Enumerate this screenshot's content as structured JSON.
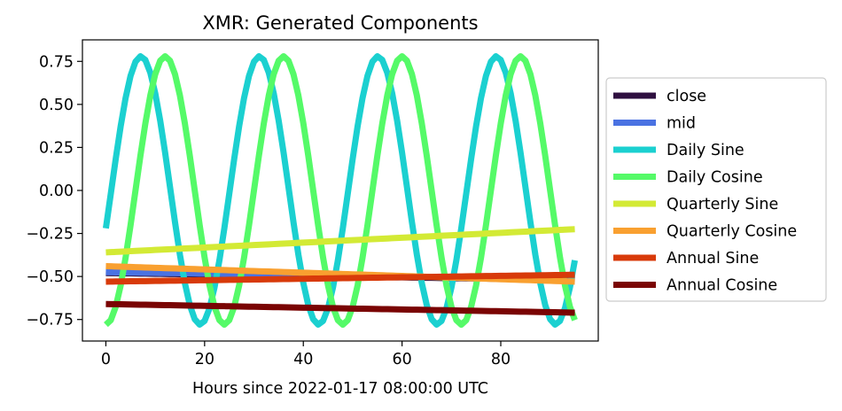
{
  "chart_data": {
    "type": "line",
    "title": "XMR: Generated Components",
    "xlabel": "Hours since 2022-01-17 08:00:00 UTC",
    "ylabel": "",
    "xlim": [
      -4.75,
      99.75
    ],
    "ylim": [
      -0.875,
      0.875
    ],
    "xticks": [
      "0",
      "20",
      "40",
      "60",
      "80"
    ],
    "yticks": [
      "0.75",
      "0.50",
      "0.25",
      "0.00",
      "−0.25",
      "−0.50",
      "−0.75"
    ],
    "grid": false,
    "legend_position": "outside-right",
    "x_range": [
      0,
      95
    ],
    "series": [
      {
        "name": "close",
        "color": "#2f1040",
        "kind": "linear",
        "start": -0.48,
        "end": -0.52
      },
      {
        "name": "mid",
        "color": "#4a72e2",
        "kind": "linear",
        "start": -0.475,
        "end": -0.515
      },
      {
        "name": "Daily Sine",
        "color": "#1bd0d0",
        "kind": "sine",
        "amplitude": 0.78,
        "period_hours": 24,
        "phase_hours": 0,
        "y_at_0": -0.22,
        "y_at_95": -0.38
      },
      {
        "name": "Daily Cosine",
        "color": "#55fa68",
        "kind": "cosine",
        "amplitude": 0.78,
        "period_hours": 24,
        "phase_hours": 0,
        "y_at_0": -0.76,
        "y_at_95": -0.69
      },
      {
        "name": "Quarterly Sine",
        "color": "#d3ea35",
        "kind": "linear",
        "start": -0.36,
        "end": -0.225
      },
      {
        "name": "Quarterly Cosine",
        "color": "#f9a030",
        "kind": "linear",
        "start": -0.44,
        "end": -0.53
      },
      {
        "name": "Annual Sine",
        "color": "#d83a0a",
        "kind": "linear",
        "start": -0.53,
        "end": -0.49
      },
      {
        "name": "Annual Cosine",
        "color": "#7a0403",
        "kind": "linear",
        "start": -0.66,
        "end": -0.71
      }
    ]
  }
}
